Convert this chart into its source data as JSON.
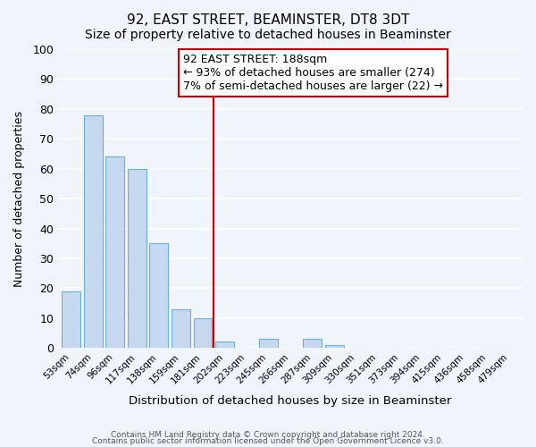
{
  "title": "92, EAST STREET, BEAMINSTER, DT8 3DT",
  "subtitle": "Size of property relative to detached houses in Beaminster",
  "xlabel": "Distribution of detached houses by size in Beaminster",
  "ylabel": "Number of detached properties",
  "bin_labels": [
    "53sqm",
    "74sqm",
    "96sqm",
    "117sqm",
    "138sqm",
    "159sqm",
    "181sqm",
    "202sqm",
    "223sqm",
    "245sqm",
    "266sqm",
    "287sqm",
    "309sqm",
    "330sqm",
    "351sqm",
    "373sqm",
    "394sqm",
    "415sqm",
    "436sqm",
    "458sqm",
    "479sqm"
  ],
  "bar_heights": [
    19,
    78,
    64,
    60,
    35,
    13,
    10,
    2,
    0,
    3,
    0,
    3,
    1,
    0,
    0,
    0,
    0,
    0,
    0,
    0,
    0
  ],
  "bar_color": "#c5d8f0",
  "bar_edge_color": "#6baed6",
  "vline_x": 6.5,
  "vline_color": "#cc0000",
  "annotation_line1": "92 EAST STREET: 188sqm",
  "annotation_line2": "← 93% of detached houses are smaller (274)",
  "annotation_line3": "7% of semi-detached houses are larger (22) →",
  "annotation_fontsize": 9,
  "ylim": [
    0,
    100
  ],
  "background_color": "#f0f4fb",
  "footer_line1": "Contains HM Land Registry data © Crown copyright and database right 2024.",
  "footer_line2": "Contains public sector information licensed under the Open Government Licence v3.0.",
  "grid_color": "#ffffff",
  "title_fontsize": 11,
  "subtitle_fontsize": 10
}
